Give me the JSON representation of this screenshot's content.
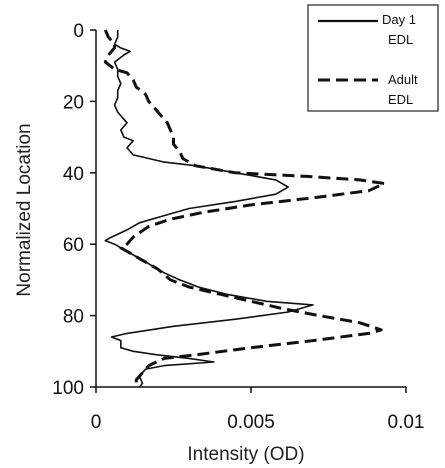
{
  "chart_data": {
    "type": "line",
    "title": "",
    "xlabel": "Intensity (OD)",
    "ylabel": "Normalized Location",
    "xlim": [
      0,
      0.01
    ],
    "ylim": [
      0,
      100
    ],
    "y_inverted": true,
    "x_ticks": [
      "0",
      "0.005",
      "0.01"
    ],
    "y_ticks": [
      "0",
      "20",
      "40",
      "60",
      "80",
      "100"
    ],
    "x_tick_values": [
      0,
      0.005,
      0.01
    ],
    "y_tick_values": [
      0,
      20,
      40,
      60,
      80,
      100
    ],
    "grid": false,
    "legend_position": "top-right",
    "legend": [
      {
        "line1": "Day 1",
        "line2": "EDL",
        "style": "solid"
      },
      {
        "line1": "Adult",
        "line2": "EDL",
        "style": "dashed"
      }
    ],
    "series": [
      {
        "name": "Day 1 EDL",
        "style": "solid",
        "color": "#111111",
        "points": [
          [
            0.0007,
            0
          ],
          [
            0.0007,
            2
          ],
          [
            0.0006,
            4
          ],
          [
            0.0008,
            5
          ],
          [
            0.0011,
            6
          ],
          [
            0.0009,
            7
          ],
          [
            0.0006,
            9
          ],
          [
            0.0007,
            11
          ],
          [
            0.0007,
            13
          ],
          [
            0.0008,
            15
          ],
          [
            0.0007,
            17
          ],
          [
            0.0007,
            19
          ],
          [
            0.0006,
            21
          ],
          [
            0.0007,
            23
          ],
          [
            0.0009,
            25
          ],
          [
            0.001,
            26
          ],
          [
            0.0008,
            28
          ],
          [
            0.0009,
            30
          ],
          [
            0.0012,
            31
          ],
          [
            0.001,
            33
          ],
          [
            0.0012,
            35
          ],
          [
            0.0017,
            36
          ],
          [
            0.0022,
            37
          ],
          [
            0.0032,
            38
          ],
          [
            0.0045,
            40
          ],
          [
            0.0058,
            42
          ],
          [
            0.0062,
            44
          ],
          [
            0.0058,
            46
          ],
          [
            0.0045,
            48
          ],
          [
            0.003,
            50
          ],
          [
            0.0022,
            52
          ],
          [
            0.0014,
            54
          ],
          [
            0.001,
            56
          ],
          [
            0.0005,
            58
          ],
          [
            0.0003,
            59
          ],
          [
            0.0006,
            60
          ],
          [
            0.001,
            62
          ],
          [
            0.0014,
            64
          ],
          [
            0.0018,
            66
          ],
          [
            0.0022,
            68
          ],
          [
            0.0027,
            70
          ],
          [
            0.0033,
            72
          ],
          [
            0.0042,
            74
          ],
          [
            0.0055,
            76
          ],
          [
            0.007,
            77
          ],
          [
            0.0062,
            79
          ],
          [
            0.0045,
            81
          ],
          [
            0.0025,
            83
          ],
          [
            0.001,
            85
          ],
          [
            0.0005,
            86
          ],
          [
            0.0008,
            87
          ],
          [
            0.0008,
            89
          ],
          [
            0.0012,
            90
          ],
          [
            0.002,
            91
          ],
          [
            0.003,
            92
          ],
          [
            0.0038,
            93
          ],
          [
            0.0022,
            94
          ],
          [
            0.0016,
            95
          ],
          [
            0.0014,
            97
          ],
          [
            0.0015,
            99
          ],
          [
            0.0014,
            100
          ]
        ]
      },
      {
        "name": "Adult EDL",
        "style": "dashed",
        "color": "#111111",
        "points": [
          [
            0.0003,
            0
          ],
          [
            0.0004,
            2
          ],
          [
            0.0006,
            4
          ],
          [
            0.0006,
            5
          ],
          [
            0.0004,
            7
          ],
          [
            0.0003,
            9
          ],
          [
            0.0006,
            11
          ],
          [
            0.001,
            12
          ],
          [
            0.0012,
            14
          ],
          [
            0.0013,
            16
          ],
          [
            0.0016,
            18
          ],
          [
            0.0017,
            20
          ],
          [
            0.0019,
            22
          ],
          [
            0.0021,
            24
          ],
          [
            0.0023,
            26
          ],
          [
            0.0024,
            28
          ],
          [
            0.0025,
            30
          ],
          [
            0.0025,
            32
          ],
          [
            0.0027,
            34
          ],
          [
            0.0028,
            36
          ],
          [
            0.0032,
            38
          ],
          [
            0.0045,
            40
          ],
          [
            0.0068,
            41
          ],
          [
            0.0085,
            42
          ],
          [
            0.0093,
            43
          ],
          [
            0.0088,
            45
          ],
          [
            0.007,
            47
          ],
          [
            0.005,
            49
          ],
          [
            0.0035,
            51
          ],
          [
            0.0024,
            53
          ],
          [
            0.0017,
            55
          ],
          [
            0.0012,
            58
          ],
          [
            0.001,
            60
          ],
          [
            0.0008,
            61
          ],
          [
            0.0012,
            63
          ],
          [
            0.0016,
            65
          ],
          [
            0.002,
            67
          ],
          [
            0.0024,
            70
          ],
          [
            0.003,
            72
          ],
          [
            0.004,
            74
          ],
          [
            0.005,
            76
          ],
          [
            0.006,
            78
          ],
          [
            0.0072,
            80
          ],
          [
            0.0085,
            82
          ],
          [
            0.0092,
            84
          ],
          [
            0.0088,
            85
          ],
          [
            0.007,
            87
          ],
          [
            0.005,
            89
          ],
          [
            0.0032,
            91
          ],
          [
            0.0022,
            92
          ],
          [
            0.0017,
            94
          ],
          [
            0.0015,
            96
          ],
          [
            0.0013,
            98
          ],
          [
            0.0013,
            100
          ]
        ]
      }
    ]
  }
}
